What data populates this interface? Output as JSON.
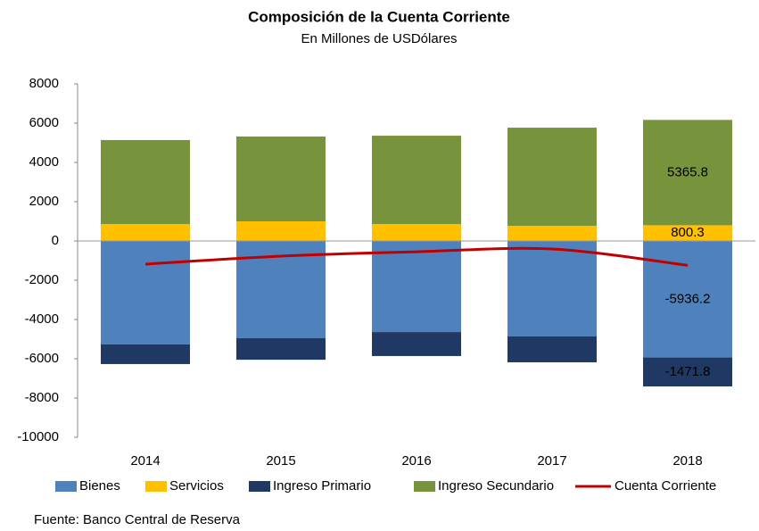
{
  "chart_data": {
    "type": "bar",
    "stacked": true,
    "title": "Composición de la Cuenta Corriente",
    "subtitle": "En Millones de USDólares",
    "source": "Fuente: Banco Central de Reserva",
    "categories": [
      "2014",
      "2015",
      "2016",
      "2017",
      "2018"
    ],
    "series": [
      {
        "name": "Bienes",
        "type": "bar",
        "color": "#4f81bd",
        "values": [
          -5270,
          -4950,
          -4640,
          -4860,
          -5936.2
        ],
        "value_labels": [
          null,
          null,
          null,
          null,
          "-5936.2"
        ]
      },
      {
        "name": "Servicios",
        "type": "bar",
        "color": "#ffc000",
        "values": [
          860,
          1000,
          860,
          770,
          800.3
        ],
        "value_labels": [
          null,
          null,
          null,
          null,
          "800.3"
        ]
      },
      {
        "name": "Ingreso Primario",
        "type": "bar",
        "color": "#1f3864",
        "values": [
          -1000,
          -1100,
          -1220,
          -1320,
          -1471.8
        ],
        "value_labels": [
          null,
          null,
          null,
          null,
          "-1471.8"
        ]
      },
      {
        "name": "Ingreso Secundario",
        "type": "bar",
        "color": "#77933c",
        "values": [
          4280,
          4320,
          4500,
          5000,
          5365.8
        ],
        "value_labels": [
          null,
          null,
          null,
          null,
          "5365.8"
        ]
      },
      {
        "name": "Cuenta Corriente",
        "type": "line",
        "color": "#c00000",
        "values": [
          -1180,
          -770,
          -550,
          -410,
          -1240
        ]
      }
    ],
    "ylim": [
      -10000,
      8000
    ],
    "yticks": [
      -10000,
      -8000,
      -6000,
      -4000,
      -2000,
      0,
      2000,
      4000,
      6000,
      8000
    ],
    "legend": "bottom"
  }
}
